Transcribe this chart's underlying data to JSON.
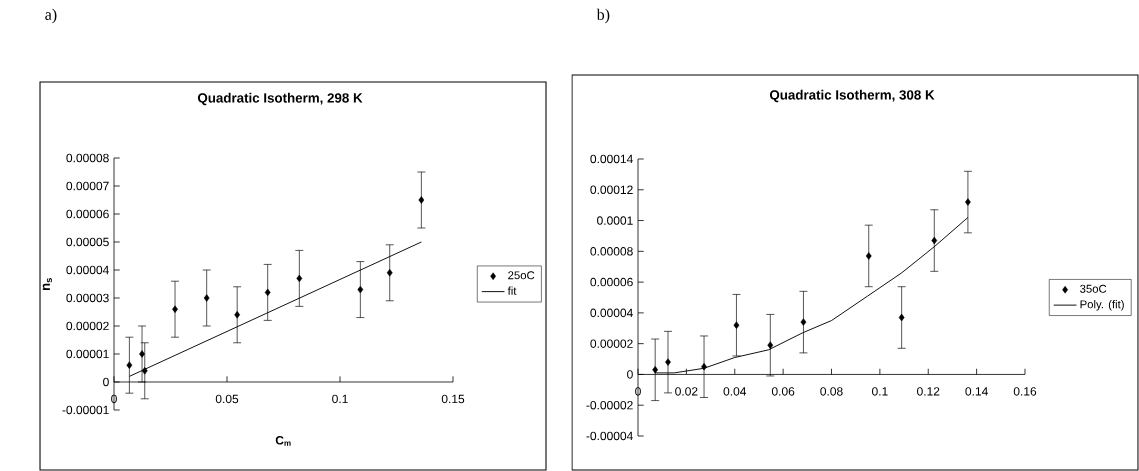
{
  "chart_data": [
    {
      "type": "scatter",
      "title": "Quadratic Isotherm, 298 K",
      "xlabel": "C$_{m}$",
      "ylabel": "n$_{s}$",
      "annotations": [
        "a)"
      ],
      "legend": "right",
      "xlim": [
        0,
        0.15
      ],
      "xticks": [
        0,
        0.05,
        0.1,
        0.15
      ],
      "ylim": [
        -1e-05,
        8e-05
      ],
      "yticks": [
        {
          "value": -1e-05,
          "label": "-0.00001"
        },
        {
          "value": 0,
          "label": "0"
        },
        {
          "value": 1e-05,
          "label": "0.00001"
        },
        {
          "value": 2e-05,
          "label": "0.00002"
        },
        {
          "value": 3e-05,
          "label": "0.00003"
        },
        {
          "value": 4e-05,
          "label": "0.00004"
        },
        {
          "value": 5e-05,
          "label": "0.00005"
        },
        {
          "value": 6e-05,
          "label": "0.00006"
        },
        {
          "value": 7e-05,
          "label": "0.00007"
        },
        {
          "value": 8e-05,
          "label": "0.00008"
        }
      ],
      "series": [
        {
          "name": "25oC",
          "marker": "diamond",
          "color": "#000000",
          "x": [
            0.0068,
            0.0124,
            0.0136,
            0.027,
            0.041,
            0.0545,
            0.068,
            0.082,
            0.109,
            0.122,
            0.136
          ],
          "values": [
            6e-06,
            1e-05,
            4e-06,
            2.6e-05,
            3e-05,
            2.4e-05,
            3.2e-05,
            3.7e-05,
            3.3e-05,
            3.9e-05,
            6.5e-05
          ],
          "errors": [
            1e-05,
            1e-05,
            1e-05,
            1e-05,
            1e-05,
            1e-05,
            1e-05,
            1e-05,
            1e-05,
            1e-05,
            1e-05
          ]
        },
        {
          "name": "fit",
          "type": "line",
          "color": "#000000",
          "x": [
            0.0068,
            0.136
          ],
          "values": [
            2e-06,
            5e-05
          ]
        }
      ]
    },
    {
      "type": "scatter",
      "title": "Quadratic Isotherm, 308 K",
      "annotations": [
        "b)"
      ],
      "legend": "right",
      "xlim": [
        0,
        0.16
      ],
      "xticks": [
        0,
        0.02,
        0.04,
        0.06,
        0.08,
        0.1,
        0.12,
        0.14,
        0.16
      ],
      "ylim": [
        -4e-05,
        0.00014
      ],
      "yticks": [
        {
          "value": -4e-05,
          "label": "-0.00004"
        },
        {
          "value": -2e-05,
          "label": "-0.00002"
        },
        {
          "value": 0,
          "label": "0"
        },
        {
          "value": 2e-05,
          "label": "0.00002"
        },
        {
          "value": 4e-05,
          "label": "0.00004"
        },
        {
          "value": 6e-05,
          "label": "0.00006"
        },
        {
          "value": 8e-05,
          "label": "0.00008"
        },
        {
          "value": 0.0001,
          "label": "0.0001"
        },
        {
          "value": 0.00012,
          "label": "0.00012"
        },
        {
          "value": 0.00014,
          "label": "0.00014"
        }
      ],
      "series": [
        {
          "name": "35oC",
          "marker": "diamond",
          "color": "#000000",
          "x": [
            0.0071,
            0.0124,
            0.0273,
            0.0407,
            0.0547,
            0.0684,
            0.0954,
            0.109,
            0.1225,
            0.1364
          ],
          "values": [
            3e-06,
            8e-06,
            5e-06,
            3.2e-05,
            1.9e-05,
            3.4e-05,
            7.7e-05,
            3.7e-05,
            8.7e-05,
            0.000112
          ],
          "errors": [
            2e-05,
            2e-05,
            2e-05,
            2e-05,
            2e-05,
            2e-05,
            2e-05,
            2e-05,
            2e-05,
            2e-05
          ]
        },
        {
          "name": "Poly. (fit)",
          "type": "line",
          "color": "#000000",
          "x": [
            0.0071,
            0.015,
            0.0273,
            0.04,
            0.054,
            0.068,
            0.08,
            0.095,
            0.109,
            0.1225,
            0.1364
          ],
          "values": [
            1e-06,
            1e-06,
            4e-06,
            1.1e-05,
            1.6e-05,
            2.7e-05,
            3.5e-05,
            5.1e-05,
            6.6e-05,
            8.3e-05,
            0.000102
          ]
        }
      ]
    }
  ]
}
